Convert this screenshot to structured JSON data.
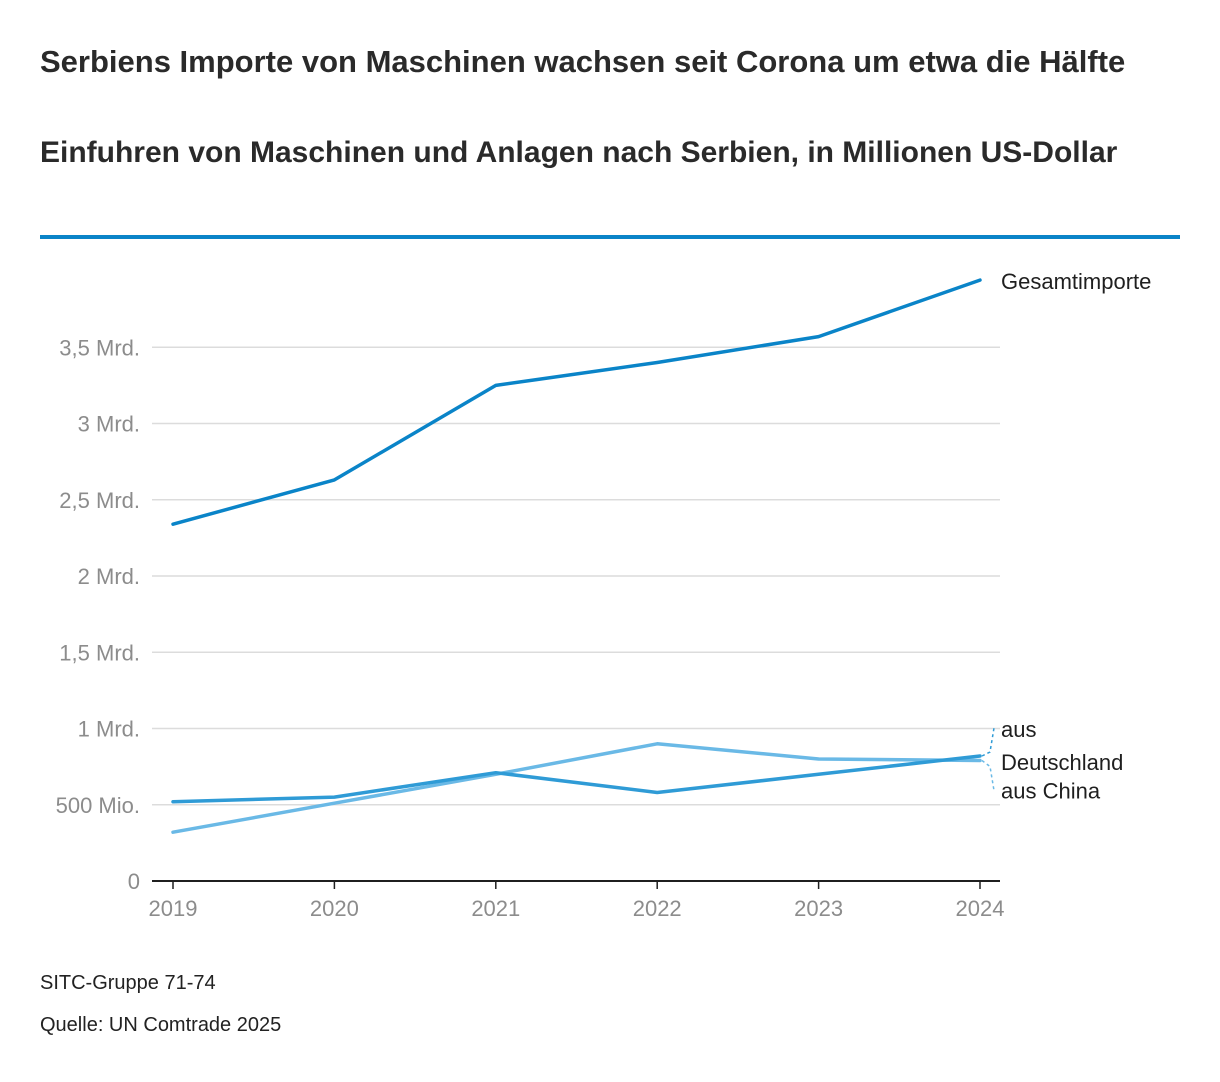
{
  "header": {
    "title": "Serbiens Importe von Maschinen wachsen seit Corona um etwa die Hälfte",
    "subtitle": "Einfuhren von Maschinen und Anlagen nach Serbien, in Millionen US-Dollar"
  },
  "footer": {
    "note": "SITC-Gruppe 71-74",
    "source": "Quelle: UN Comtrade 2025"
  },
  "colors": {
    "accent": "#0a84c8",
    "gesamt": "#0a84c8",
    "deutschland": "#2f9bd6",
    "china": "#6ab9e6",
    "grid": "#dcdcdc",
    "tick": "#8c8c8c"
  },
  "chart_data": {
    "type": "line",
    "x": [
      2019,
      2020,
      2021,
      2022,
      2023,
      2024
    ],
    "ylim": [
      0,
      4000
    ],
    "yticks": [
      0,
      500,
      1000,
      1500,
      2000,
      2500,
      3000,
      3500
    ],
    "ytick_labels": [
      "0",
      "500 Mio.",
      "1 Mrd.",
      "1,5 Mrd.",
      "2 Mrd.",
      "2,5 Mrd.",
      "3 Mrd.",
      "3,5 Mrd."
    ],
    "xtick_labels": [
      "2019",
      "2020",
      "2021",
      "2022",
      "2023",
      "2024"
    ],
    "grid": true,
    "legend": "direct labels at line ends (right)",
    "series": [
      {
        "name": "Gesamtimporte",
        "values": [
          2340,
          2630,
          3250,
          3400,
          3570,
          3940
        ]
      },
      {
        "name": "aus Deutschland",
        "values": [
          520,
          550,
          710,
          580,
          700,
          820
        ]
      },
      {
        "name": "aus China",
        "values": [
          320,
          510,
          700,
          900,
          800,
          790
        ]
      }
    ],
    "labels": {
      "gesamt": "Gesamtimporte",
      "aus": "aus",
      "deutschland": "Deutschland",
      "china": "aus China"
    }
  }
}
